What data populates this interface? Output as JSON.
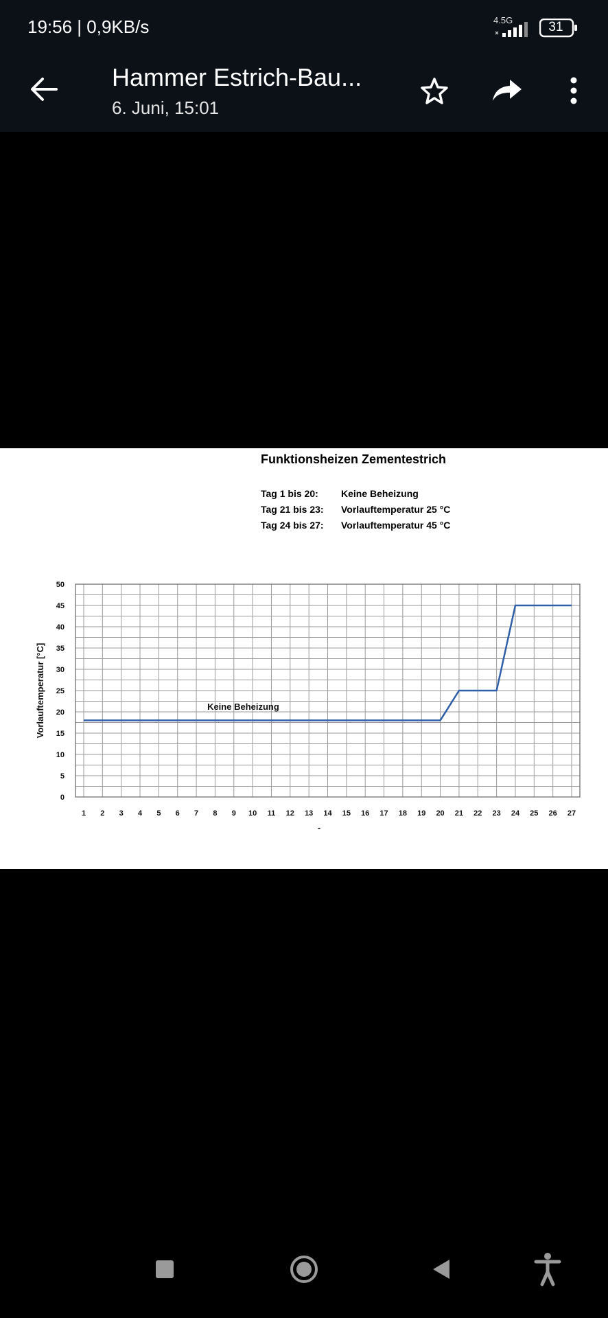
{
  "status_bar": {
    "time_and_speed": "19:56 | 0,9KB/s",
    "network": "4.5G",
    "battery": "31"
  },
  "app_bar": {
    "title": "Hammer Estrich-Bau...",
    "subtitle": "6. Juni, 15:01",
    "icons": [
      "arrow-left-icon",
      "star-outline-icon",
      "share-arrow-icon",
      "more-vertical-icon"
    ]
  },
  "image": {
    "title": "Funktionsheizen Zementestrich",
    "legend": [
      {
        "label": "Tag 1 bis 20:",
        "value": "Keine Beheizung"
      },
      {
        "label": "Tag 21 bis 23:",
        "value": "Vorlauftemperatur 25 °C"
      },
      {
        "label": "Tag 24 bis 27:",
        "value": "Vorlauftemperatur 45 °C"
      }
    ]
  },
  "chart_data": {
    "type": "line",
    "title": "Funktionsheizen Zementestrich",
    "ylabel": "Vorlauftemperatur [°C]",
    "xlabel": "-",
    "ylim": [
      0,
      50
    ],
    "xlim": [
      1,
      27
    ],
    "yticks": [
      0,
      5,
      10,
      15,
      20,
      25,
      30,
      35,
      40,
      45,
      50
    ],
    "categories": [
      "1",
      "2",
      "3",
      "4",
      "5",
      "6",
      "7",
      "8",
      "9",
      "10",
      "11",
      "12",
      "13",
      "14",
      "15",
      "16",
      "17",
      "18",
      "19",
      "20",
      "21",
      "22",
      "23",
      "24",
      "25",
      "26",
      "27"
    ],
    "grid": true,
    "line_color": "#2e5fa8",
    "series": [
      {
        "x": [
          1,
          20,
          21,
          23,
          24,
          27
        ],
        "y": [
          18,
          18,
          25,
          25,
          45,
          45
        ]
      }
    ],
    "annotations": [
      {
        "text": "Keine Beheizung",
        "x": 9.5,
        "y": 20.5
      }
    ]
  }
}
